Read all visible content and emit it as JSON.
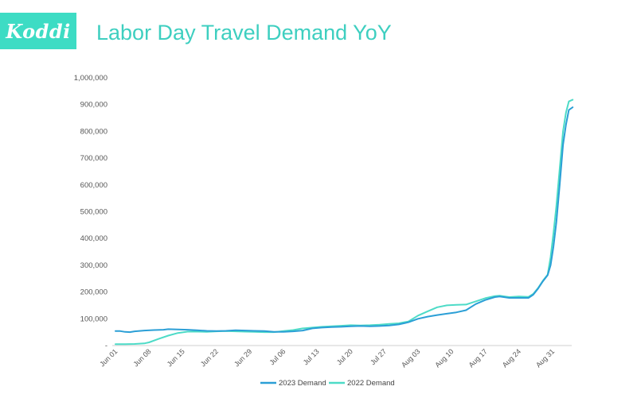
{
  "header": {
    "logo_text": "Koddi",
    "title": "Labor Day Travel Demand YoY"
  },
  "colors": {
    "brand": "#3ddcc4",
    "title": "#3ecfc0",
    "series_2023": "#2b9fd6",
    "series_2022": "#4ddbc7",
    "axis": "#cfcfcf"
  },
  "chart_data": {
    "type": "line",
    "title": "Labor Day Travel Demand YoY",
    "xlabel": "",
    "ylabel": "",
    "ylim": [
      0,
      1000000
    ],
    "yticks": [
      {
        "value": 0,
        "label": "-"
      },
      {
        "value": 100000,
        "label": "100,000"
      },
      {
        "value": 200000,
        "label": "200,000"
      },
      {
        "value": 300000,
        "label": "300,000"
      },
      {
        "value": 400000,
        "label": "400,000"
      },
      {
        "value": 500000,
        "label": "500,000"
      },
      {
        "value": 600000,
        "label": "600,000"
      },
      {
        "value": 700000,
        "label": "700,000"
      },
      {
        "value": 800000,
        "label": "800,000"
      },
      {
        "value": 900000,
        "label": "900,000"
      },
      {
        "value": 1000000,
        "label": "1,000,000"
      }
    ],
    "x_range": [
      0,
      95
    ],
    "xticks": [
      {
        "pos": 0,
        "label": "Jun 01"
      },
      {
        "pos": 7,
        "label": "Jun 08"
      },
      {
        "pos": 14,
        "label": "Jun 15"
      },
      {
        "pos": 21,
        "label": "Jun 22"
      },
      {
        "pos": 28,
        "label": "Jun 29"
      },
      {
        "pos": 35,
        "label": "Jul 06"
      },
      {
        "pos": 42,
        "label": "Jul 13"
      },
      {
        "pos": 49,
        "label": "Jul 20"
      },
      {
        "pos": 56,
        "label": "Jul 27"
      },
      {
        "pos": 63,
        "label": "Aug 03"
      },
      {
        "pos": 70,
        "label": "Aug 10"
      },
      {
        "pos": 77,
        "label": "Aug 17"
      },
      {
        "pos": 84,
        "label": "Aug 24"
      },
      {
        "pos": 91,
        "label": "Aug 31"
      }
    ],
    "legend_position": "bottom",
    "series": [
      {
        "name": "2023 Demand",
        "points": [
          [
            0,
            54000
          ],
          [
            1,
            54000
          ],
          [
            2,
            51000
          ],
          [
            3,
            50000
          ],
          [
            4,
            53000
          ],
          [
            6,
            56000
          ],
          [
            8,
            58000
          ],
          [
            10,
            59000
          ],
          [
            11,
            61000
          ],
          [
            13,
            60000
          ],
          [
            15,
            59000
          ],
          [
            17,
            57000
          ],
          [
            19,
            55000
          ],
          [
            21,
            54000
          ],
          [
            23,
            55000
          ],
          [
            25,
            57000
          ],
          [
            27,
            56000
          ],
          [
            29,
            55000
          ],
          [
            31,
            54000
          ],
          [
            33,
            51000
          ],
          [
            35,
            51000
          ],
          [
            37,
            53000
          ],
          [
            39,
            56000
          ],
          [
            41,
            64000
          ],
          [
            43,
            67000
          ],
          [
            45,
            69000
          ],
          [
            47,
            70000
          ],
          [
            49,
            72000
          ],
          [
            51,
            73000
          ],
          [
            53,
            72000
          ],
          [
            55,
            73000
          ],
          [
            57,
            75000
          ],
          [
            59,
            79000
          ],
          [
            61,
            87000
          ],
          [
            63,
            100000
          ],
          [
            65,
            108000
          ],
          [
            67,
            114000
          ],
          [
            69,
            119000
          ],
          [
            71,
            124000
          ],
          [
            73,
            132000
          ],
          [
            75,
            155000
          ],
          [
            77,
            170000
          ],
          [
            79,
            181000
          ],
          [
            80,
            183000
          ],
          [
            82,
            178000
          ],
          [
            84,
            178000
          ],
          [
            86,
            178000
          ],
          [
            87,
            190000
          ],
          [
            88,
            213000
          ],
          [
            89,
            240000
          ],
          [
            90,
            263000
          ],
          [
            90.6,
            300000
          ],
          [
            91.2,
            370000
          ],
          [
            91.8,
            460000
          ],
          [
            92.5,
            600000
          ],
          [
            93.2,
            750000
          ],
          [
            93.8,
            825000
          ],
          [
            94.4,
            880000
          ],
          [
            95.2,
            890000
          ]
        ]
      },
      {
        "name": "2022 Demand",
        "points": [
          [
            0,
            5000
          ],
          [
            2,
            5000
          ],
          [
            4,
            6000
          ],
          [
            6,
            8000
          ],
          [
            7,
            12000
          ],
          [
            9,
            25000
          ],
          [
            11,
            37000
          ],
          [
            13,
            47000
          ],
          [
            15,
            52000
          ],
          [
            17,
            52000
          ],
          [
            19,
            51000
          ],
          [
            21,
            53000
          ],
          [
            23,
            54000
          ],
          [
            25,
            53000
          ],
          [
            27,
            52000
          ],
          [
            29,
            51000
          ],
          [
            31,
            50000
          ],
          [
            33,
            50000
          ],
          [
            35,
            54000
          ],
          [
            37,
            58000
          ],
          [
            39,
            64000
          ],
          [
            41,
            67000
          ],
          [
            43,
            70000
          ],
          [
            45,
            72000
          ],
          [
            47,
            74000
          ],
          [
            49,
            76000
          ],
          [
            51,
            75000
          ],
          [
            53,
            76000
          ],
          [
            55,
            78000
          ],
          [
            57,
            81000
          ],
          [
            59,
            83000
          ],
          [
            61,
            90000
          ],
          [
            63,
            112000
          ],
          [
            65,
            128000
          ],
          [
            67,
            143000
          ],
          [
            69,
            150000
          ],
          [
            71,
            152000
          ],
          [
            73,
            153000
          ],
          [
            75,
            165000
          ],
          [
            77,
            177000
          ],
          [
            79,
            185000
          ],
          [
            80,
            186000
          ],
          [
            82,
            181000
          ],
          [
            84,
            183000
          ],
          [
            86,
            182000
          ],
          [
            87,
            193000
          ],
          [
            88,
            215000
          ],
          [
            89,
            242000
          ],
          [
            90,
            265000
          ],
          [
            90.6,
            330000
          ],
          [
            91.2,
            420000
          ],
          [
            91.8,
            520000
          ],
          [
            92.5,
            660000
          ],
          [
            93.2,
            800000
          ],
          [
            93.8,
            870000
          ],
          [
            94.4,
            912000
          ],
          [
            95.2,
            918000
          ]
        ]
      }
    ]
  }
}
